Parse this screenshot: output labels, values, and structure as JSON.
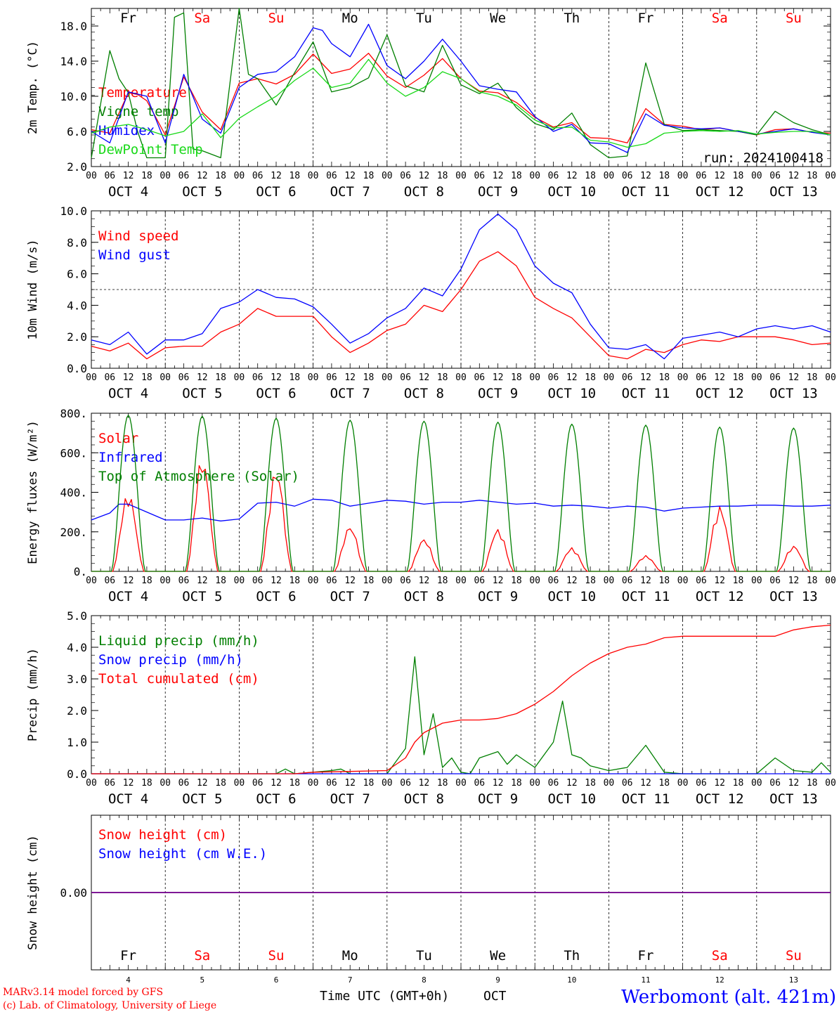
{
  "colors": {
    "red": "#ff0000",
    "blue": "#0000ff",
    "green": "#007f00",
    "lightgreen": "#19d919",
    "purple": "#7f007f",
    "black": "#000000"
  },
  "days": {
    "labels": [
      "Fr",
      "Sa",
      "Su",
      "Mo",
      "Tu",
      "We",
      "Th",
      "Fr",
      "Sa",
      "Su"
    ],
    "colors": [
      "#000000",
      "#ff0000",
      "#ff0000",
      "#000000",
      "#000000",
      "#000000",
      "#000000",
      "#000000",
      "#ff0000",
      "#ff0000"
    ],
    "dates": [
      "OCT  4",
      "OCT  5",
      "OCT  6",
      "OCT  7",
      "OCT  8",
      "OCT  9",
      "OCT 10",
      "OCT 11",
      "OCT 12",
      "OCT 13"
    ],
    "numbers": [
      "4",
      "5",
      "6",
      "7",
      "8",
      "9",
      "10",
      "11",
      "12",
      "13"
    ],
    "hour_labels": [
      "00",
      "06",
      "12",
      "18"
    ],
    "final_hour": "00"
  },
  "chart_data": [
    {
      "type": "line",
      "ylabel": "2m Temp. (°C)",
      "ylim": [
        2,
        20
      ],
      "yticks": [
        "2.0",
        "6.0",
        "10.0",
        "14.0",
        "18.0"
      ],
      "ytick_values": [
        2,
        6,
        10,
        14,
        18
      ],
      "x_unit": "hours since Oct 4 00 UTC",
      "annotation": "run: 2024100418",
      "series": [
        {
          "name": "Temperature",
          "color": "#ff0000",
          "x": [
            0,
            6,
            12,
            15,
            18,
            24,
            30,
            36,
            42,
            48,
            54,
            60,
            66,
            72,
            78,
            84,
            90,
            96,
            102,
            108,
            114,
            120,
            126,
            132,
            138,
            144,
            150,
            156,
            162,
            168,
            174,
            180,
            186,
            192,
            198,
            204,
            210,
            216,
            222,
            228,
            234,
            240
          ],
          "y": [
            6.2,
            5.8,
            10.4,
            10.2,
            9.5,
            5.6,
            12.2,
            8.2,
            6.2,
            11.5,
            12.0,
            11.4,
            12.5,
            14.8,
            12.6,
            13.1,
            14.9,
            12.3,
            11.0,
            12.4,
            14.3,
            12.0,
            10.6,
            10.4,
            9.3,
            7.6,
            6.5,
            7.0,
            5.3,
            5.2,
            4.7,
            8.6,
            6.8,
            6.6,
            6.2,
            6.4,
            6.0,
            5.6,
            6.2,
            6.3,
            5.9,
            5.8
          ]
        },
        {
          "name": "Vigne temp",
          "color": "#007f00",
          "x": [
            0,
            6,
            9,
            12,
            15,
            18,
            24,
            27,
            30,
            33,
            36,
            42,
            48,
            51,
            54,
            60,
            66,
            72,
            78,
            84,
            90,
            96,
            102,
            108,
            114,
            120,
            126,
            132,
            138,
            144,
            150,
            156,
            162,
            168,
            174,
            180,
            186,
            192,
            198,
            204,
            210,
            216,
            222,
            228,
            234,
            240
          ],
          "y": [
            3.0,
            15.2,
            12.0,
            10.4,
            6.0,
            3.0,
            3.0,
            19.0,
            19.5,
            4.0,
            3.8,
            3.0,
            20.0,
            12.5,
            12.0,
            9.0,
            12.7,
            16.2,
            10.5,
            11.0,
            12.1,
            17.0,
            11.2,
            10.5,
            15.8,
            11.3,
            10.3,
            11.5,
            8.7,
            6.9,
            6.2,
            8.1,
            4.5,
            3.0,
            3.2,
            13.8,
            6.8,
            6.1,
            6.2,
            6.1,
            6.0,
            5.6,
            8.3,
            7.0,
            6.2,
            5.6
          ]
        },
        {
          "name": "Humidex",
          "color": "#0000ff",
          "x": [
            0,
            6,
            12,
            18,
            24,
            30,
            36,
            42,
            48,
            54,
            60,
            66,
            72,
            75,
            78,
            84,
            90,
            96,
            102,
            108,
            114,
            120,
            126,
            132,
            138,
            144,
            150,
            156,
            162,
            168,
            174,
            180,
            186,
            192,
            198,
            204,
            210,
            216,
            222,
            228,
            234,
            240
          ],
          "y": [
            6.0,
            4.7,
            10.5,
            10.0,
            4.7,
            12.5,
            7.4,
            5.8,
            11.0,
            12.5,
            12.8,
            14.5,
            17.8,
            17.5,
            16.0,
            14.5,
            18.2,
            13.5,
            12.0,
            14.0,
            16.5,
            14.0,
            11.2,
            10.8,
            10.5,
            7.7,
            6.0,
            6.8,
            4.7,
            4.6,
            3.6,
            8.0,
            6.7,
            6.4,
            6.3,
            6.4,
            6.0,
            5.7,
            6.0,
            6.3,
            5.9,
            5.6
          ]
        },
        {
          "name": "DewPoint Temp",
          "color": "#19d919",
          "x": [
            0,
            6,
            12,
            18,
            24,
            30,
            36,
            42,
            48,
            54,
            60,
            66,
            72,
            78,
            84,
            90,
            96,
            102,
            108,
            114,
            120,
            126,
            132,
            138,
            144,
            150,
            156,
            162,
            168,
            174,
            180,
            186,
            192,
            198,
            204,
            210,
            216,
            222,
            228,
            234,
            240
          ],
          "y": [
            5.8,
            6.5,
            6.8,
            6.2,
            5.5,
            6.0,
            8.0,
            5.3,
            7.5,
            8.8,
            10.0,
            11.8,
            13.2,
            11.0,
            11.5,
            14.2,
            11.5,
            10.0,
            11.0,
            12.8,
            12.0,
            10.5,
            10.0,
            9.0,
            7.3,
            6.4,
            6.5,
            5.0,
            4.8,
            4.2,
            4.6,
            5.8,
            6.0,
            6.1,
            6.0,
            6.1,
            5.7,
            5.9,
            6.0,
            6.0,
            5.6
          ]
        }
      ]
    },
    {
      "type": "line",
      "ylabel": "10m Wind (m/s)",
      "ylim": [
        0,
        10
      ],
      "yticks": [
        "0.0",
        "2.0",
        "4.0",
        "6.0",
        "8.0",
        "10.0"
      ],
      "ytick_values": [
        0,
        2,
        4,
        6,
        8,
        10
      ],
      "threshold": 5.0,
      "series": [
        {
          "name": "Wind speed",
          "color": "#ff0000",
          "x": [
            0,
            6,
            12,
            18,
            24,
            30,
            36,
            42,
            48,
            54,
            60,
            66,
            72,
            78,
            84,
            90,
            96,
            102,
            108,
            114,
            120,
            126,
            132,
            138,
            144,
            150,
            156,
            162,
            168,
            174,
            180,
            186,
            192,
            198,
            204,
            210,
            216,
            222,
            228,
            234,
            240
          ],
          "y": [
            1.4,
            1.1,
            1.6,
            0.6,
            1.3,
            1.4,
            1.4,
            2.3,
            2.8,
            3.8,
            3.3,
            3.3,
            3.3,
            2.0,
            1.0,
            1.6,
            2.4,
            2.8,
            4.0,
            3.6,
            5.0,
            6.8,
            7.4,
            6.5,
            4.5,
            3.8,
            3.2,
            2.0,
            0.8,
            0.6,
            1.2,
            1.0,
            1.5,
            1.8,
            1.7,
            2.0,
            2.0,
            2.0,
            1.8,
            1.5,
            1.6
          ]
        },
        {
          "name": "Wind gust",
          "color": "#0000ff",
          "x": [
            0,
            6,
            12,
            18,
            24,
            30,
            36,
            42,
            48,
            54,
            60,
            66,
            72,
            78,
            84,
            90,
            96,
            102,
            108,
            114,
            120,
            126,
            132,
            138,
            144,
            150,
            156,
            162,
            168,
            174,
            180,
            186,
            192,
            198,
            204,
            210,
            216,
            222,
            228,
            234,
            240
          ],
          "y": [
            1.8,
            1.5,
            2.3,
            0.9,
            1.8,
            1.8,
            2.2,
            3.8,
            4.2,
            5.0,
            4.5,
            4.4,
            3.9,
            2.8,
            1.6,
            2.2,
            3.2,
            3.8,
            5.1,
            4.6,
            6.3,
            8.8,
            9.8,
            8.8,
            6.5,
            5.4,
            4.8,
            2.8,
            1.3,
            1.2,
            1.5,
            0.6,
            1.9,
            2.1,
            2.3,
            2.0,
            2.5,
            2.7,
            2.5,
            2.7,
            2.3
          ]
        }
      ]
    },
    {
      "type": "line",
      "ylabel": "Energy fluxes (W/m²)",
      "ylim": [
        0,
        800
      ],
      "yticks": [
        "0.",
        "200.",
        "400.",
        "600.",
        "800."
      ],
      "ytick_values": [
        0,
        200,
        400,
        600,
        800
      ],
      "series": [
        {
          "name": "Solar",
          "color": "#ff0000",
          "day_peaks": [
            400,
            580,
            520,
            230,
            165,
            215,
            120,
            80,
            330,
            130
          ]
        },
        {
          "name": "Infrared",
          "color": "#0000ff",
          "x": [
            0,
            6,
            9,
            12,
            18,
            24,
            30,
            36,
            42,
            48,
            54,
            60,
            66,
            72,
            78,
            84,
            90,
            96,
            102,
            108,
            114,
            120,
            126,
            132,
            138,
            144,
            150,
            156,
            162,
            168,
            174,
            180,
            186,
            192,
            198,
            204,
            210,
            216,
            222,
            228,
            234,
            240
          ],
          "y": [
            260,
            295,
            340,
            340,
            300,
            260,
            260,
            270,
            255,
            265,
            345,
            350,
            330,
            365,
            360,
            330,
            345,
            360,
            355,
            340,
            350,
            350,
            360,
            350,
            340,
            345,
            330,
            335,
            330,
            320,
            330,
            325,
            305,
            320,
            325,
            330,
            330,
            335,
            335,
            330,
            330,
            335
          ]
        },
        {
          "name": "Top of Atmosphere (Solar)",
          "color": "#007f00",
          "day_peaks": [
            790,
            785,
            775,
            765,
            760,
            755,
            745,
            740,
            730,
            725
          ]
        }
      ]
    },
    {
      "type": "line",
      "ylabel": "Precip (mm/h)",
      "ylim": [
        0,
        5
      ],
      "yticks": [
        "0.0",
        "1.0",
        "2.0",
        "3.0",
        "4.0",
        "5.0"
      ],
      "ytick_values": [
        0,
        1,
        2,
        3,
        4,
        5
      ],
      "series": [
        {
          "name": "Liquid precip (mm/h)",
          "color": "#007f00",
          "x": [
            0,
            60,
            63,
            66,
            78,
            81,
            84,
            96,
            102,
            105,
            108,
            111,
            114,
            117,
            120,
            123,
            126,
            132,
            135,
            138,
            141,
            144,
            150,
            153,
            156,
            159,
            162,
            168,
            174,
            180,
            186,
            192,
            198,
            204,
            210,
            216,
            222,
            228,
            234,
            237,
            240
          ],
          "y": [
            0,
            0,
            0.15,
            0,
            0.1,
            0.15,
            0,
            0,
            0.8,
            3.7,
            0.6,
            1.9,
            0.2,
            0.5,
            0.05,
            0,
            0.5,
            0.7,
            0.3,
            0.6,
            0.4,
            0.2,
            1.0,
            2.3,
            0.6,
            0.5,
            0.25,
            0.1,
            0.2,
            0.9,
            0.05,
            0,
            0,
            0,
            0,
            0,
            0.5,
            0.1,
            0.05,
            0.35,
            0.05
          ]
        },
        {
          "name": "Snow precip (mm/h)",
          "color": "#0000ff",
          "x": [
            0,
            240
          ],
          "y": [
            0,
            0
          ]
        },
        {
          "name": "Total cumulated (cm)",
          "color": "#ff0000",
          "x": [
            0,
            66,
            72,
            96,
            102,
            105,
            108,
            114,
            120,
            126,
            132,
            138,
            144,
            150,
            156,
            162,
            168,
            174,
            180,
            186,
            192,
            198,
            204,
            210,
            216,
            222,
            228,
            234,
            240
          ],
          "y": [
            0,
            0,
            0.05,
            0.1,
            0.5,
            1.0,
            1.3,
            1.6,
            1.7,
            1.7,
            1.75,
            1.9,
            2.2,
            2.6,
            3.1,
            3.5,
            3.8,
            4.0,
            4.1,
            4.3,
            4.35,
            4.35,
            4.35,
            4.35,
            4.35,
            4.35,
            4.55,
            4.65,
            4.7
          ]
        }
      ]
    },
    {
      "type": "line",
      "ylabel": "Snow height (cm)",
      "yticks": [
        "0.00"
      ],
      "ytick_values": [
        0
      ],
      "series": [
        {
          "name": "Snow height (cm)",
          "color": "#ff0000",
          "x": [
            0,
            240
          ],
          "y": [
            0,
            0
          ]
        },
        {
          "name": "Snow height (cm W.E.)",
          "color": "#0000ff",
          "x": [
            0,
            240
          ],
          "y": [
            0,
            0
          ]
        }
      ]
    }
  ],
  "footer": {
    "model_line": "MARv3.14 model forced by GFS",
    "credit_line": "(c) Lab. of Climatology, University of Liege",
    "xlabel": "Time UTC (GMT+0h)",
    "month": "OCT",
    "station": "Werbomont (alt. 421m)"
  }
}
